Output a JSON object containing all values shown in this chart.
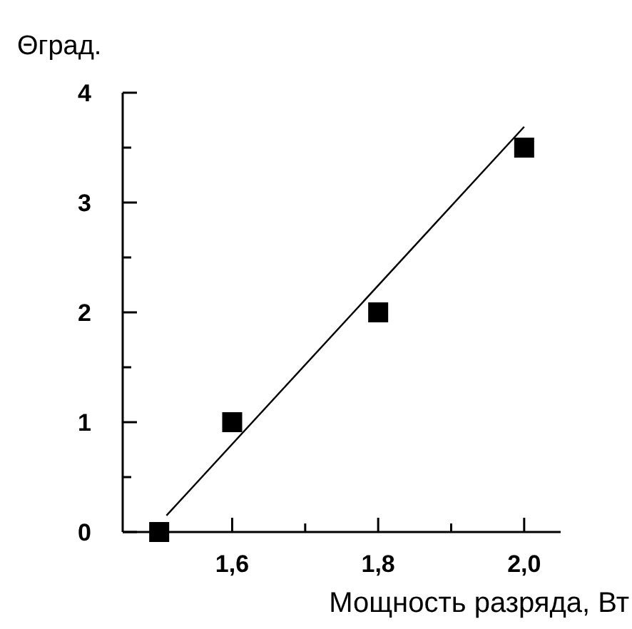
{
  "chart_data": {
    "type": "scatter",
    "ylabel": "Θград.",
    "xlabel": "Мощность разряда, Вт",
    "xlim": [
      1.45,
      2.05
    ],
    "ylim": [
      0,
      4
    ],
    "xticks": [
      {
        "value": 1.5,
        "label": null
      },
      {
        "value": 1.6,
        "label": "1,6"
      },
      {
        "value": 1.7,
        "label": null
      },
      {
        "value": 1.8,
        "label": "1,8"
      },
      {
        "value": 1.9,
        "label": null
      },
      {
        "value": 2.0,
        "label": "2,0"
      }
    ],
    "yticks": [
      0,
      {
        "value": 0.5,
        "label": null
      },
      1,
      {
        "value": 1.5,
        "label": null
      },
      2,
      {
        "value": 2.5,
        "label": null
      },
      3,
      {
        "value": 3.5,
        "label": null
      },
      4
    ],
    "grid": false,
    "series": [
      {
        "marker": "square",
        "color": "#000000",
        "x": [
          1.5,
          1.6,
          1.8,
          2.0
        ],
        "values": [
          0,
          1,
          2,
          3.5
        ]
      },
      {
        "type": "line",
        "marker": "none",
        "line_style": "solid",
        "color": "#000000",
        "x": [
          1.51,
          2.0
        ],
        "values": [
          0.15,
          3.69
        ]
      }
    ]
  }
}
